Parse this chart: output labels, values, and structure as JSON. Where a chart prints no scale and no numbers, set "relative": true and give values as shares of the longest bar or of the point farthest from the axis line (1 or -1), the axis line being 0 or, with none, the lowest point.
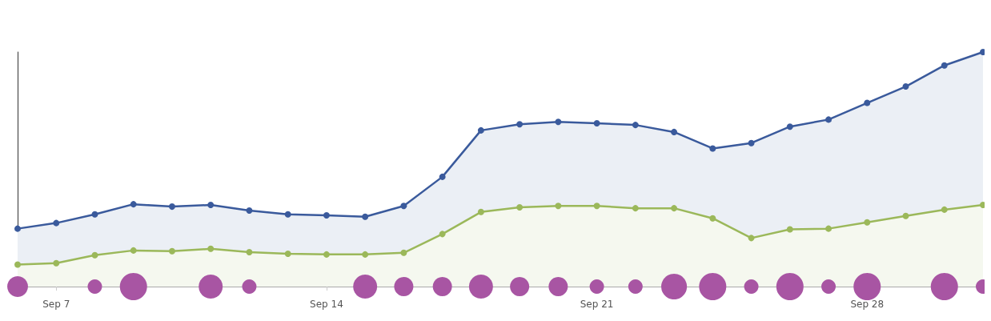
{
  "chart_data": {
    "type": "area",
    "relative": true,
    "x": [
      "--09-06",
      "--09-07",
      "--09-08",
      "--09-09",
      "--09-10",
      "--09-11",
      "--09-12",
      "--09-13",
      "--09-14",
      "--09-15",
      "--09-16",
      "--09-17",
      "--09-18",
      "--09-19",
      "--09-20",
      "--09-21",
      "--09-22",
      "--09-23",
      "--09-24",
      "--09-25",
      "--09-26",
      "--09-27",
      "--09-28",
      "--09-29",
      "--09-30",
      "--10-01"
    ],
    "xlim": [
      "--09-06",
      "--10-01"
    ],
    "xticks": [
      {
        "value": "--09-07",
        "label": "Sep 7"
      },
      {
        "value": "--09-14",
        "label": "Sep 14"
      },
      {
        "value": "--09-21",
        "label": "Sep 21"
      },
      {
        "value": "--09-28",
        "label": "Sep 28"
      }
    ],
    "grid": false,
    "marker": "circle",
    "line_style": "solid",
    "series": [
      {
        "color": "#3a5a9c",
        "values": [
          0.247,
          0.271,
          0.308,
          0.351,
          0.341,
          0.348,
          0.324,
          0.308,
          0.304,
          0.298,
          0.344,
          0.468,
          0.666,
          0.692,
          0.702,
          0.696,
          0.689,
          0.659,
          0.589,
          0.612,
          0.682,
          0.712,
          0.783,
          0.853,
          0.943,
          1
        ]
      },
      {
        "color": "#9bb85a",
        "values": [
          0.094,
          0.1,
          0.134,
          0.154,
          0.151,
          0.161,
          0.147,
          0.14,
          0.137,
          0.137,
          0.144,
          0.224,
          0.318,
          0.338,
          0.344,
          0.344,
          0.334,
          0.334,
          0.291,
          0.207,
          0.244,
          0.247,
          0.274,
          0.301,
          0.328,
          0.348
        ]
      },
      {
        "type": "bubble",
        "color": "#a855a3",
        "values": [
          0,
          null,
          0,
          0,
          null,
          0,
          0,
          null,
          null,
          0,
          0,
          0,
          0,
          0,
          0,
          0,
          0,
          0,
          0,
          0,
          0,
          0,
          0,
          null,
          0,
          0
        ],
        "sizes": [
          0.58,
          null,
          0.28,
          1,
          null,
          0.78,
          0.28,
          null,
          null,
          0.78,
          0.5,
          0.5,
          0.78,
          0.5,
          0.5,
          0.28,
          0.28,
          0.89,
          1,
          0.28,
          1,
          0.28,
          1,
          null,
          1,
          0.28
        ]
      }
    ]
  }
}
